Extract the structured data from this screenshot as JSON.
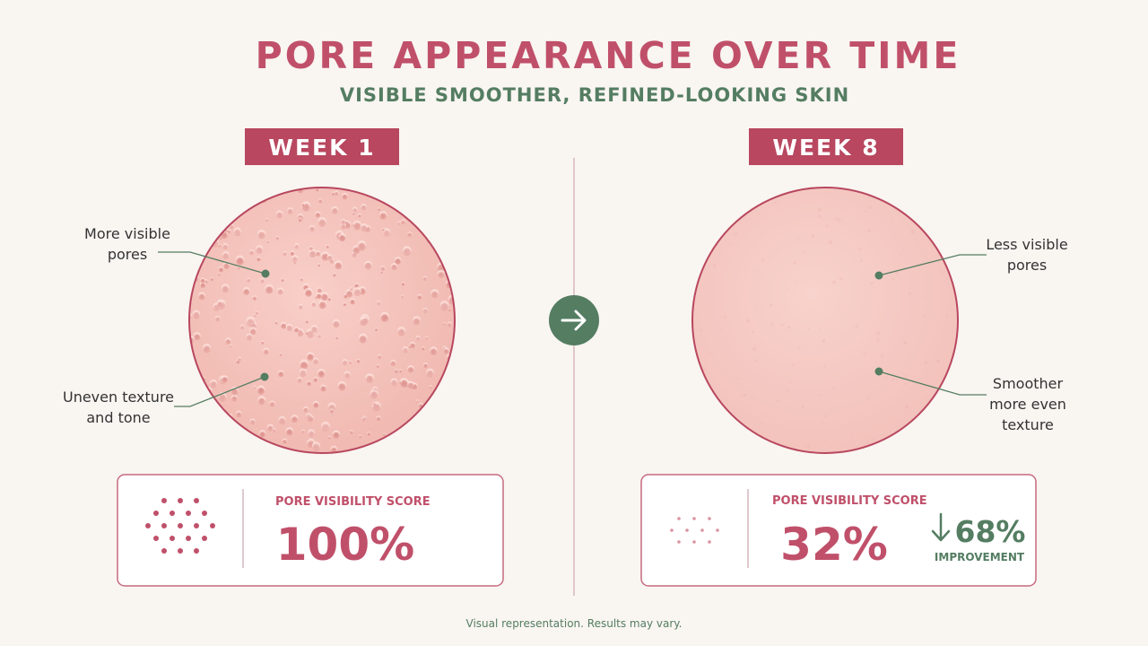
{
  "header": {
    "title": "PORE APPEARANCE OVER TIME",
    "subtitle": "VISIBLE SMOOTHER, REFINED-LOOKING SKIN"
  },
  "colors": {
    "background": "#f9f5f1",
    "rose": "#c0506a",
    "rose_dark": "#b8475f",
    "green": "#547d62",
    "skin": "#f5c3bb",
    "skin_light": "#f7cdc6",
    "divider": "#d7b9bd"
  },
  "before": {
    "label": "WEEK 1",
    "callouts": [
      {
        "lines": [
          "More visible",
          "pores"
        ]
      },
      {
        "lines": [
          "Uneven texture",
          "and tone"
        ]
      }
    ],
    "score_label": "PORE VISIBILITY SCORE",
    "score_value": "100%"
  },
  "after": {
    "label": "WEEK 8",
    "callouts": [
      {
        "lines": [
          "Less visible",
          "pores"
        ]
      },
      {
        "lines": [
          "Smoother",
          "more even",
          "texture"
        ]
      }
    ],
    "score_label": "PORE VISIBILITY SCORE",
    "score_value": "32%",
    "improvement_value": "68%",
    "improvement_label": "IMPROVEMENT"
  },
  "transition_icon": "arrow-right-icon",
  "footnote": "Visual representation. Results may vary."
}
